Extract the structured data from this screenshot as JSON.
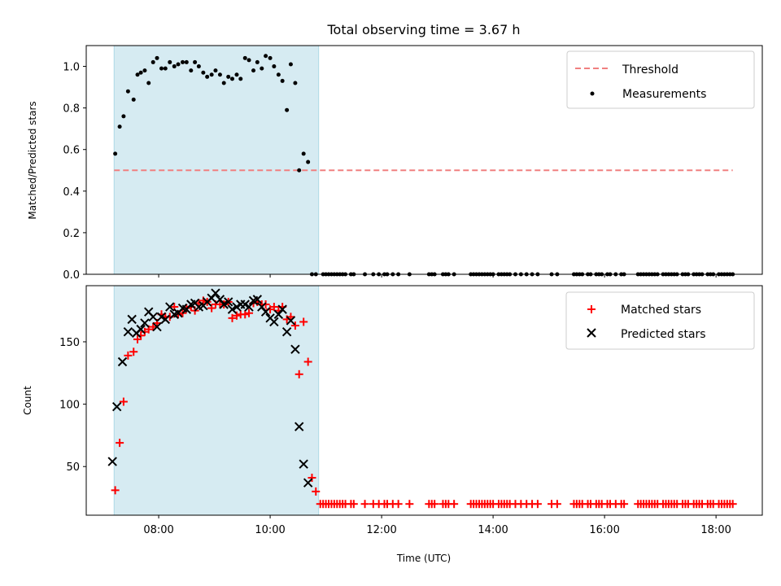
{
  "title": "Total observing time = 3.67 h",
  "chart_data": [
    {
      "type": "scatter",
      "ylabel": "Matched/Predicted stars",
      "xlim": [
        6.7,
        18.83
      ],
      "ylim": [
        0,
        1.1
      ],
      "yticks": [
        "0.0",
        "0.2",
        "0.4",
        "0.6",
        "0.8",
        "1.0"
      ],
      "observing_window": [
        7.2,
        10.87
      ],
      "threshold": {
        "name": "Threshold",
        "value": 0.5,
        "x": [
          7.2,
          18.3
        ],
        "color": "#f08080"
      },
      "legend": {
        "position": "top-right",
        "entries": [
          "Threshold",
          "Measurements"
        ]
      },
      "series": [
        {
          "name": "Measurements",
          "color": "#000000",
          "x": [
            7.22,
            7.3,
            7.37,
            7.45,
            7.55,
            7.62,
            7.68,
            7.75,
            7.82,
            7.9,
            7.97,
            8.05,
            8.12,
            8.2,
            8.28,
            8.35,
            8.43,
            8.5,
            8.58,
            8.65,
            8.72,
            8.8,
            8.87,
            8.95,
            9.02,
            9.1,
            9.17,
            9.25,
            9.32,
            9.4,
            9.47,
            9.55,
            9.62,
            9.7,
            9.77,
            9.85,
            9.92,
            10.0,
            10.07,
            10.15,
            10.22,
            10.3,
            10.37,
            10.45,
            10.52,
            10.6,
            10.68,
            10.75,
            10.82
          ],
          "y": [
            0.58,
            0.71,
            0.76,
            0.88,
            0.84,
            0.96,
            0.97,
            0.98,
            0.92,
            1.02,
            1.04,
            0.99,
            0.99,
            1.02,
            1.0,
            1.01,
            1.02,
            1.02,
            0.98,
            1.02,
            1.0,
            0.97,
            0.95,
            0.96,
            0.98,
            0.96,
            0.92,
            0.95,
            0.94,
            0.96,
            0.94,
            1.04,
            1.03,
            0.98,
            1.02,
            0.99,
            1.05,
            1.04,
            1.0,
            0.96,
            0.93,
            0.79,
            1.01,
            0.92,
            0.5,
            0.58,
            0.54,
            0.0,
            0.0
          ]
        }
      ],
      "zero_x": [
        10.95,
        11.0,
        11.05,
        11.1,
        11.15,
        11.2,
        11.25,
        11.3,
        11.35,
        11.45,
        11.5,
        11.7,
        11.85,
        11.95,
        12.05,
        12.1,
        12.2,
        12.3,
        12.5,
        12.85,
        12.9,
        12.95,
        13.1,
        13.15,
        13.2,
        13.3,
        13.6,
        13.65,
        13.7,
        13.75,
        13.8,
        13.85,
        13.9,
        13.95,
        14.0,
        14.1,
        14.15,
        14.2,
        14.25,
        14.3,
        14.4,
        14.5,
        14.6,
        14.7,
        14.8,
        15.05,
        15.15,
        15.45,
        15.5,
        15.55,
        15.6,
        15.7,
        15.75,
        15.85,
        15.9,
        15.95,
        16.05,
        16.1,
        16.2,
        16.3,
        16.35,
        16.6,
        16.65,
        16.7,
        16.75,
        16.8,
        16.85,
        16.9,
        16.95,
        17.05,
        17.1,
        17.15,
        17.2,
        17.25,
        17.3,
        17.4,
        17.45,
        17.5,
        17.6,
        17.65,
        17.7,
        17.75,
        17.85,
        17.9,
        17.95,
        18.05,
        18.1,
        18.15,
        18.2,
        18.25,
        18.3
      ]
    },
    {
      "type": "scatter",
      "xlabel": "Time (UTC)",
      "ylabel": "Count",
      "xlim": [
        6.7,
        18.83
      ],
      "ylim": [
        11,
        195
      ],
      "yticks": [
        "50",
        "100",
        "150"
      ],
      "xticks": [
        "08:00",
        "10:00",
        "12:00",
        "14:00",
        "16:00",
        "18:00"
      ],
      "observing_window": [
        7.2,
        10.87
      ],
      "legend": {
        "position": "top-right",
        "entries": [
          "Matched stars",
          "Predicted stars"
        ]
      },
      "series": [
        {
          "name": "Matched stars",
          "color": "#ff0000",
          "marker": "+",
          "x": [
            7.22,
            7.3,
            7.37,
            7.45,
            7.55,
            7.62,
            7.68,
            7.75,
            7.82,
            7.9,
            7.97,
            8.05,
            8.12,
            8.2,
            8.28,
            8.35,
            8.43,
            8.5,
            8.58,
            8.65,
            8.72,
            8.8,
            8.87,
            8.95,
            9.02,
            9.1,
            9.17,
            9.25,
            9.32,
            9.4,
            9.47,
            9.55,
            9.62,
            9.7,
            9.77,
            9.85,
            9.92,
            10.0,
            10.07,
            10.15,
            10.22,
            10.3,
            10.37,
            10.45,
            10.52,
            10.6,
            10.68,
            10.75,
            10.82,
            10.9,
            10.95,
            11.0,
            11.05,
            11.1,
            11.15,
            11.2,
            11.25,
            11.3,
            11.35,
            11.45,
            11.5,
            11.7,
            11.85,
            11.95,
            12.05,
            12.1,
            12.2,
            12.3,
            12.5,
            12.85,
            12.9,
            12.95,
            13.1,
            13.15,
            13.2,
            13.3,
            13.6,
            13.65,
            13.7,
            13.75,
            13.8,
            13.85,
            13.9,
            13.95,
            14.0,
            14.1,
            14.15,
            14.2,
            14.25,
            14.3,
            14.4,
            14.5,
            14.6,
            14.7,
            14.8,
            15.05,
            15.15,
            15.45,
            15.5,
            15.55,
            15.6,
            15.7,
            15.75,
            15.85,
            15.9,
            15.95,
            16.05,
            16.1,
            16.2,
            16.3,
            16.35,
            16.6,
            16.65,
            16.7,
            16.75,
            16.8,
            16.85,
            16.9,
            16.95,
            17.05,
            17.1,
            17.15,
            17.2,
            17.25,
            17.3,
            17.4,
            17.45,
            17.5,
            17.6,
            17.65,
            17.7,
            17.75,
            17.85,
            17.9,
            17.95,
            18.05,
            18.1,
            18.15,
            18.2,
            18.25,
            18.3
          ],
          "y": [
            31,
            69,
            102,
            139,
            142,
            152,
            155,
            158,
            160,
            162,
            165,
            172,
            170,
            170,
            178,
            172,
            173,
            177,
            178,
            175,
            181,
            183,
            182,
            177,
            180,
            180,
            180,
            182,
            169,
            171,
            172,
            172,
            173,
            181,
            182,
            180,
            180,
            176,
            178,
            175,
            178,
            168,
            170,
            163,
            124,
            166,
            134,
            41,
            30,
            20,
            20,
            20,
            20,
            20,
            20,
            20,
            20,
            20,
            20,
            20,
            20,
            20,
            20,
            20,
            20,
            20,
            20,
            20,
            20,
            20,
            20,
            20,
            20,
            20,
            20,
            20,
            20,
            20,
            20,
            20,
            20,
            20,
            20,
            20,
            20,
            20,
            20,
            20,
            20,
            20,
            20,
            20,
            20,
            20,
            20,
            20,
            20,
            20,
            20,
            20,
            20,
            20,
            20,
            20,
            20,
            20,
            20,
            20,
            20,
            20,
            20,
            20,
            20,
            20,
            20,
            20,
            20,
            20,
            20,
            20,
            20,
            20,
            20,
            20,
            20,
            20,
            20,
            20,
            20,
            20,
            20,
            20,
            20,
            20,
            20,
            20,
            20,
            20,
            20,
            20,
            20
          ]
        },
        {
          "name": "Predicted stars",
          "color": "#000000",
          "marker": "x",
          "x": [
            7.17,
            7.25,
            7.35,
            7.45,
            7.52,
            7.6,
            7.68,
            7.75,
            7.82,
            7.9,
            7.97,
            8.05,
            8.12,
            8.2,
            8.28,
            8.35,
            8.43,
            8.5,
            8.58,
            8.65,
            8.72,
            8.8,
            8.87,
            8.95,
            9.02,
            9.1,
            9.17,
            9.25,
            9.32,
            9.4,
            9.47,
            9.55,
            9.62,
            9.7,
            9.77,
            9.85,
            9.92,
            10.0,
            10.07,
            10.15,
            10.22,
            10.3,
            10.37,
            10.45,
            10.52,
            10.6,
            10.68,
            10.75,
            10.82
          ],
          "y": [
            54,
            98,
            134,
            158,
            168,
            157,
            160,
            165,
            174,
            170,
            162,
            170,
            168,
            178,
            172,
            173,
            177,
            176,
            180,
            181,
            178,
            179,
            182,
            185,
            189,
            184,
            180,
            182,
            176,
            178,
            180,
            180,
            178,
            183,
            184,
            178,
            174,
            169,
            166,
            172,
            176,
            158,
            167,
            144,
            82,
            52,
            37,
            null,
            null
          ]
        }
      ]
    }
  ]
}
